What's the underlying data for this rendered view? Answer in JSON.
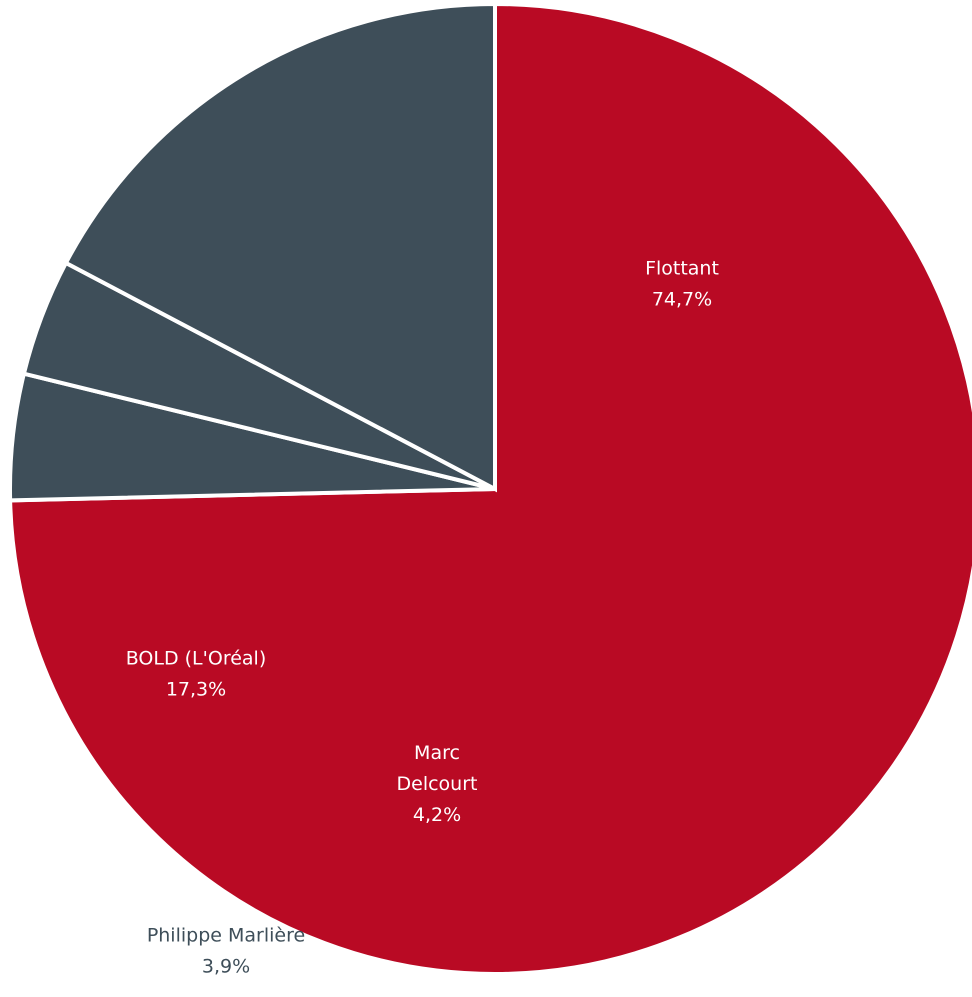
{
  "chart_data": {
    "type": "pie",
    "title": "",
    "slices": [
      {
        "name": "Flottant",
        "value": 74.7,
        "label": "74,7%",
        "color": "#b90a24",
        "label_position": "inside"
      },
      {
        "name": "Marc Delcourt",
        "name_lines": [
          "Marc",
          "Delcourt"
        ],
        "value": 4.2,
        "label": "4,2%",
        "color": "#3e4e59",
        "label_position": "inside"
      },
      {
        "name": "Philippe Marlière",
        "value": 3.9,
        "label": "3,9%",
        "color": "#3e4e59",
        "label_position": "outside"
      },
      {
        "name": "BOLD (L'Oréal)",
        "value": 17.3,
        "label": "17,3%",
        "color": "#3e4e59",
        "label_position": "inside"
      }
    ],
    "start_angle_deg": 0,
    "direction": "clockwise",
    "legend": "none"
  }
}
